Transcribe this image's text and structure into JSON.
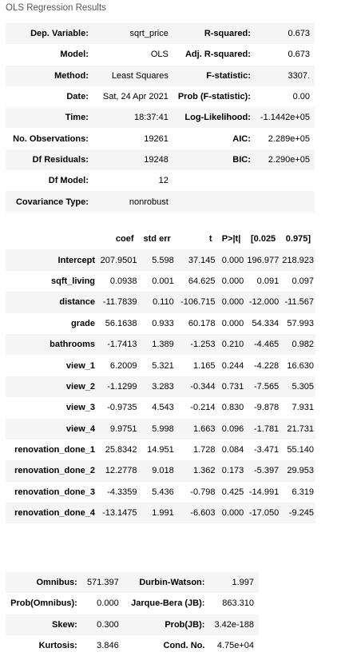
{
  "caption": "OLS Regression Results",
  "summary": [
    [
      "Dep. Variable:",
      "sqrt_price",
      "R-squared:",
      "0.673"
    ],
    [
      "Model:",
      "OLS",
      "Adj. R-squared:",
      "0.673"
    ],
    [
      "Method:",
      "Least Squares",
      "F-statistic:",
      "3307."
    ],
    [
      "Date:",
      "Sat, 24 Apr 2021",
      "Prob (F-statistic):",
      "0.00"
    ],
    [
      "Time:",
      "18:37:41",
      "Log-Likelihood:",
      "-1.1442e+05"
    ],
    [
      "No. Observations:",
      "19261",
      "AIC:",
      "2.289e+05"
    ],
    [
      "Df Residuals:",
      "19248",
      "BIC:",
      "2.290e+05"
    ],
    [
      "Df Model:",
      "12",
      "",
      ""
    ],
    [
      "Covariance Type:",
      "nonrobust",
      "",
      ""
    ]
  ],
  "coef_headers": [
    "",
    "coef",
    "std err",
    "t",
    "P>|t|",
    "[0.025",
    "0.975]"
  ],
  "coef_rows": [
    [
      "Intercept",
      "207.9501",
      "5.598",
      "37.145",
      "0.000",
      "196.977",
      "218.923"
    ],
    [
      "sqft_living",
      "0.0938",
      "0.001",
      "64.625",
      "0.000",
      "0.091",
      "0.097"
    ],
    [
      "distance",
      "-11.7839",
      "0.110",
      "-106.715",
      "0.000",
      "-12.000",
      "-11.567"
    ],
    [
      "grade",
      "56.1638",
      "0.933",
      "60.178",
      "0.000",
      "54.334",
      "57.993"
    ],
    [
      "bathrooms",
      "-1.7413",
      "1.389",
      "-1.253",
      "0.210",
      "-4.465",
      "0.982"
    ],
    [
      "view_1",
      "6.2009",
      "5.321",
      "1.165",
      "0.244",
      "-4.228",
      "16.630"
    ],
    [
      "view_2",
      "-1.1299",
      "3.283",
      "-0.344",
      "0.731",
      "-7.565",
      "5.305"
    ],
    [
      "view_3",
      "-0.9735",
      "4.543",
      "-0.214",
      "0.830",
      "-9.878",
      "7.931"
    ],
    [
      "view_4",
      "9.9751",
      "5.998",
      "1.663",
      "0.096",
      "-1.781",
      "21.731"
    ],
    [
      "renovation_done_1",
      "25.8342",
      "14.951",
      "1.728",
      "0.084",
      "-3.471",
      "55.140"
    ],
    [
      "renovation_done_2",
      "12.2778",
      "9.018",
      "1.362",
      "0.173",
      "-5.397",
      "29.953"
    ],
    [
      "renovation_done_3",
      "-4.3359",
      "5.436",
      "-0.798",
      "0.425",
      "-14.991",
      "6.319"
    ],
    [
      "renovation_done_4",
      "-13.1475",
      "1.991",
      "-6.603",
      "0.000",
      "-17.050",
      "-9.245"
    ]
  ],
  "diagnostics": [
    [
      "Omnibus:",
      "571.397",
      "Durbin-Watson:",
      "1.997"
    ],
    [
      "Prob(Omnibus):",
      "0.000",
      "Jarque-Bera (JB):",
      "863.310"
    ],
    [
      "Skew:",
      "0.300",
      "Prob(JB):",
      "3.42e-188"
    ],
    [
      "Kurtosis:",
      "3.846",
      "Cond. No.",
      "4.75e+04"
    ]
  ]
}
